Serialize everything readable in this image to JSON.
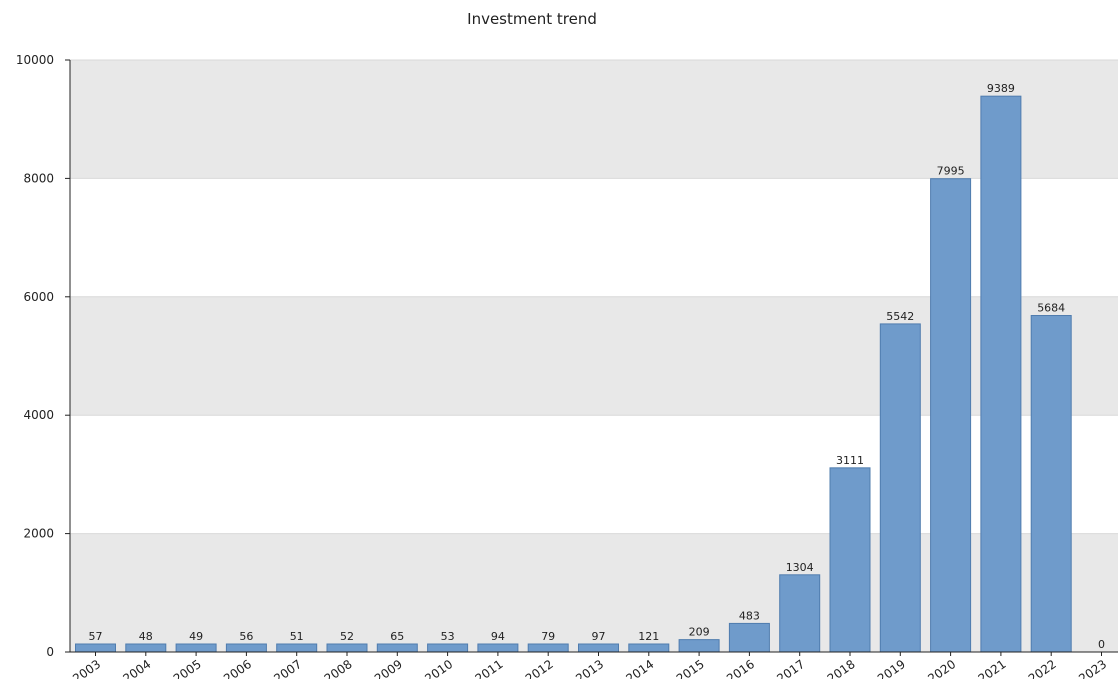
{
  "chart_data": {
    "type": "bar",
    "title": "Investment trend",
    "xlabel": "",
    "ylabel": "",
    "categories": [
      "2003",
      "2004",
      "2005",
      "2006",
      "2007",
      "2008",
      "2009",
      "2010",
      "2011",
      "2012",
      "2013",
      "2014",
      "2015",
      "2016",
      "2017",
      "2018",
      "2019",
      "2020",
      "2021",
      "2022",
      "2023"
    ],
    "values": [
      57,
      48,
      49,
      56,
      51,
      52,
      65,
      53,
      94,
      79,
      97,
      121,
      209,
      483,
      1304,
      3111,
      5542,
      7995,
      9389,
      5684,
      0
    ],
    "ylim": [
      0,
      10000
    ],
    "yticks": [
      0,
      2000,
      4000,
      6000,
      8000,
      10000
    ],
    "grid": true,
    "legend": "none",
    "colors": {
      "bar_fill": "#6f9bcb",
      "bar_stroke": "#4f7cae",
      "band_fill": "#e8e8e8",
      "gridline": "#d9d9d9",
      "axis": "#222222"
    }
  }
}
